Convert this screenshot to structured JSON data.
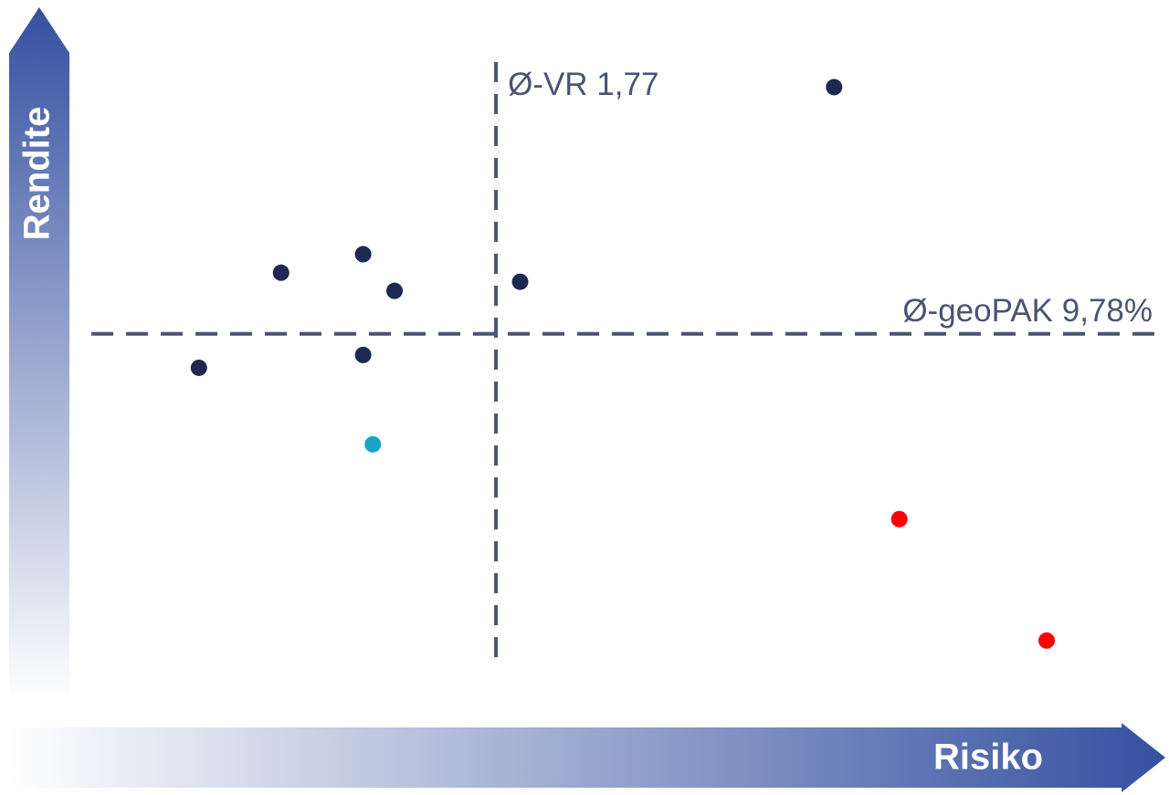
{
  "chart_data": {
    "type": "scatter",
    "x_label": "Risiko",
    "y_label": "Rendite",
    "xlim": [
      0,
      4.5
    ],
    "ylim": [
      0,
      18
    ],
    "x": [
      0.54,
      0.88,
      1.22,
      1.35,
      1.22,
      1.87,
      3.17,
      1.26,
      3.44,
      4.05
    ],
    "values": [
      8.88,
      11.4,
      11.89,
      10.92,
      9.22,
      11.16,
      16.32,
      6.85,
      4.87,
      1.65
    ],
    "colors": [
      "#1c2951",
      "#1c2951",
      "#1c2951",
      "#1c2951",
      "#1c2951",
      "#1c2951",
      "#1c2951",
      "#1ba3c6",
      "#ff0000",
      "#ff0000"
    ],
    "reference_lines": {
      "x": {
        "value": 1.77,
        "label": "Ø-VR 1,77"
      },
      "y": {
        "value": 9.78,
        "label": "Ø-geoPAK 9,78%"
      }
    },
    "reference_color": "#4a5472"
  }
}
